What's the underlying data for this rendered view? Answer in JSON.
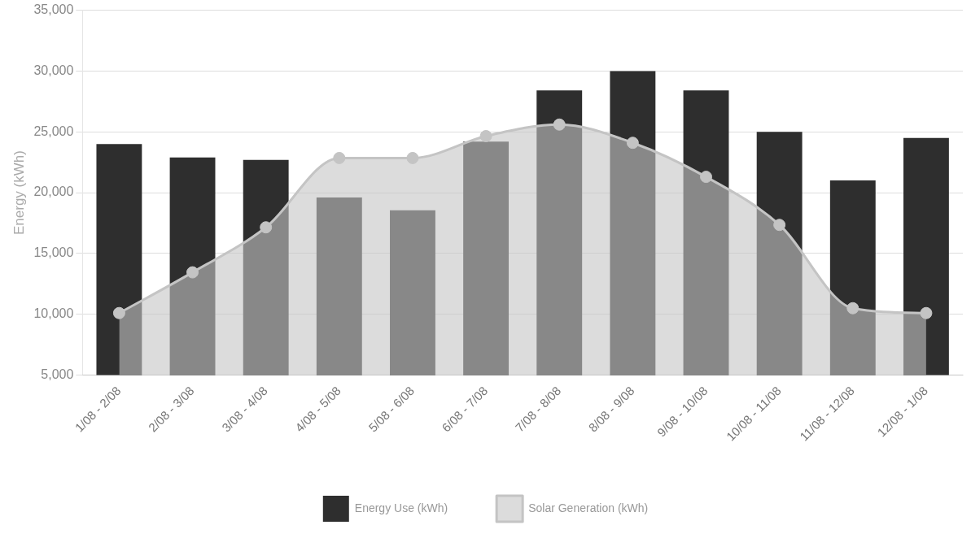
{
  "chart_data": {
    "type": "bar",
    "ylabel": "Energy (kWh)",
    "categories": [
      "1/08 - 2/08",
      "2/08 - 3/08",
      "3/08 - 4/08",
      "4/08 - 5/08",
      "5/08 - 6/08",
      "6/08 - 7/08",
      "7/08 - 8/08",
      "8/08 - 9/08",
      "9/08 - 10/08",
      "10/08 - 11/08",
      "11/08 - 12/08",
      "12/08 - 1/08"
    ],
    "series": [
      {
        "name": "Energy Use (kWh)",
        "color": "#2e2e2e",
        "values": [
          24000,
          22900,
          22700,
          19600,
          18550,
          24200,
          28400,
          30000,
          28400,
          25000,
          21000,
          24500
        ]
      },
      {
        "name": "Solar Generation (kWh)",
        "type": "area",
        "color": "#c4c4c4",
        "values": [
          10100,
          13450,
          17150,
          22850,
          22850,
          24650,
          25600,
          24100,
          21300,
          17350,
          10500,
          10100
        ]
      }
    ],
    "ylim": [
      5000,
      35000
    ],
    "yticks": [
      {
        "value": 5000,
        "label": "5,000"
      },
      {
        "value": 10000,
        "label": "10,000"
      },
      {
        "value": 15000,
        "label": "15,000"
      },
      {
        "value": 20000,
        "label": "20,000"
      },
      {
        "value": 25000,
        "label": "25,000"
      },
      {
        "value": 30000,
        "label": "30,000"
      },
      {
        "value": 35000,
        "label": "35,000"
      }
    ],
    "grid": "y",
    "legend": "bottom",
    "marker": "circle"
  }
}
